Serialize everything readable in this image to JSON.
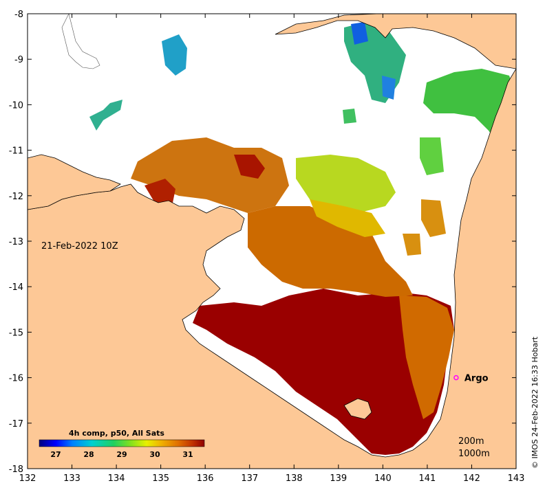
{
  "map": {
    "lon_range": [
      132,
      143
    ],
    "lat_range": [
      -18,
      -8
    ],
    "lon_ticks": [
      "132",
      "133",
      "134",
      "135",
      "136",
      "137",
      "138",
      "139",
      "140",
      "141",
      "142",
      "143"
    ],
    "lat_ticks": [
      "-8",
      "-9",
      "-10",
      "-11",
      "-12",
      "-13",
      "-14",
      "-15",
      "-16",
      "-17",
      "-18"
    ],
    "date_label": "21-Feb-2022 10Z",
    "argo": {
      "label": "Argo",
      "lon": 141.65,
      "lat": -16.0,
      "color": "#ff00ff"
    },
    "depth_legend": [
      "200m",
      "1000m"
    ],
    "credit": "© IMOS 24-Feb-2022 16:33 Hobart",
    "land_color": "#fdc896",
    "colorbar": {
      "title": "4h comp, p50, All Sats",
      "range": [
        26.5,
        31.5
      ],
      "ticks": [
        "27",
        "28",
        "29",
        "30",
        "31"
      ],
      "colors": [
        "#00007f",
        "#0000ff",
        "#0080ff",
        "#00d0d0",
        "#20d060",
        "#80e020",
        "#e8f000",
        "#f0b000",
        "#e07000",
        "#c03000",
        "#900000"
      ]
    }
  }
}
